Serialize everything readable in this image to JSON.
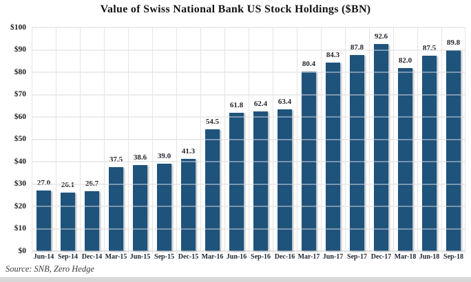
{
  "title": "Value of Swiss National Bank US Stock Holdings ($BN)",
  "source_note": "Source: SNB, Zero Hedge",
  "colors": {
    "bar": "#1e537c",
    "gridline": "#dadada",
    "vertical_gridline": "#e4e4e4",
    "baseline": "#c2c2c2",
    "title_text": "#121212",
    "label_text": "#23262e",
    "source_text": "#3a3a3a",
    "bottom_band": "#d7d7d7",
    "background": "#ffffff"
  },
  "chart_data": {
    "type": "bar",
    "title": "Value of Swiss National Bank US Stock Holdings ($BN)",
    "categories": [
      "Jun-14",
      "Sep-14",
      "Dec-14",
      "Mar-15",
      "Jun-15",
      "Sep-15",
      "Dec-15",
      "Mar-16",
      "Jun-16",
      "Sep-16",
      "Dec-16",
      "Mar-17",
      "Jun-17",
      "Sep-17",
      "Dec-17",
      "Mar-18",
      "Jun-18",
      "Sep-18"
    ],
    "values": [
      27.0,
      26.1,
      26.7,
      37.5,
      38.6,
      39.0,
      41.3,
      54.5,
      61.8,
      62.4,
      63.4,
      80.4,
      84.3,
      87.8,
      92.6,
      82.0,
      87.5,
      89.8
    ],
    "data_labels": [
      "27.0",
      "26.1",
      "26.7",
      "37.5",
      "38.6",
      "39.0",
      "41.3",
      "54.5",
      "61.8",
      "62.4",
      "63.4",
      "80.4",
      "84.3",
      "87.8",
      "92.6",
      "82.0",
      "87.5",
      "89.8"
    ],
    "xlabel": "",
    "ylabel": "",
    "ylim": [
      0,
      100
    ],
    "ytick_step": 10,
    "ytick_prefix": "$",
    "ytick_labels": [
      "$0",
      "$10",
      "$20",
      "$30",
      "$40",
      "$50",
      "$60",
      "$70",
      "$80",
      "$90",
      "$100"
    ],
    "grid": "horizontal and faint vertical",
    "legend": "none",
    "source": "Source: SNB, Zero Hedge"
  }
}
